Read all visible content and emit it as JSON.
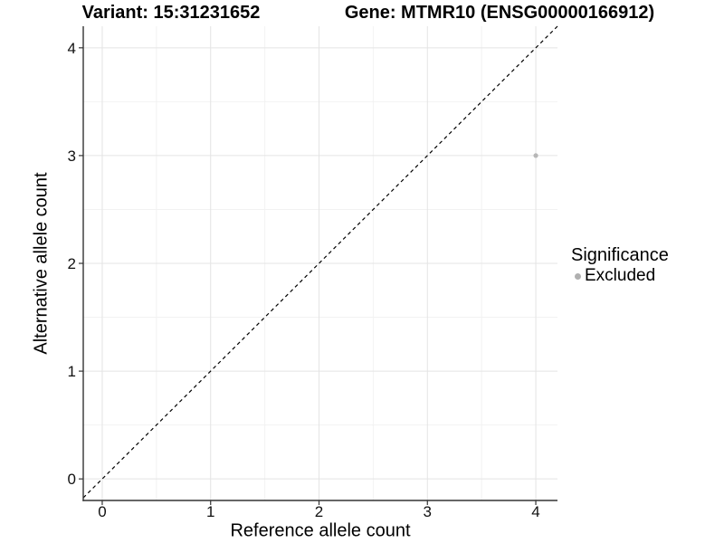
{
  "header": {
    "variant_title": "Variant: 15:31231652",
    "gene_title": "Gene: MTMR10 (ENSG00000166912)"
  },
  "legend": {
    "title": "Significance",
    "items": [
      {
        "label": "Excluded",
        "color": "#b0b0b0"
      }
    ]
  },
  "chart_data": {
    "type": "scatter",
    "title": "Variant: 15:31231652 | Gene: MTMR10 (ENSG00000166912)",
    "xlabel": "Reference allele count",
    "ylabel": "Alternative allele count",
    "xlim": [
      -0.175,
      4.2
    ],
    "ylim": [
      -0.2,
      4.2
    ],
    "xticks": [
      0,
      1,
      2,
      3,
      4
    ],
    "yticks": [
      0,
      1,
      2,
      3,
      4
    ],
    "grid": true,
    "minor_grid": true,
    "legend_position": "right",
    "legend_title": "Significance",
    "series": [
      {
        "name": "Excluded",
        "color": "#b7b7b7",
        "points": [
          {
            "x": 4,
            "y": 3
          }
        ]
      }
    ],
    "reference_line": {
      "kind": "identity",
      "slope": 1,
      "intercept": 0,
      "style": "dashed",
      "color": "#000000"
    },
    "colors": {
      "major_grid": "#e4e4e4",
      "minor_grid": "#f2f2f2",
      "axis_line": "#333333",
      "tick_mark": "#333333",
      "tick_label": "#111111"
    }
  }
}
